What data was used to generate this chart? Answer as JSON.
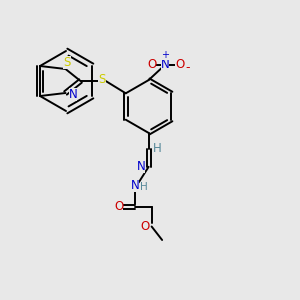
{
  "bg_color": "#e8e8e8",
  "bond_color": "#000000",
  "S_color": "#cccc00",
  "N_color": "#0000cc",
  "O_color": "#cc0000",
  "H_color": "#558899",
  "figsize": [
    3.0,
    3.0
  ],
  "dpi": 100,
  "xlim": [
    0,
    10
  ],
  "ylim": [
    0,
    10
  ]
}
